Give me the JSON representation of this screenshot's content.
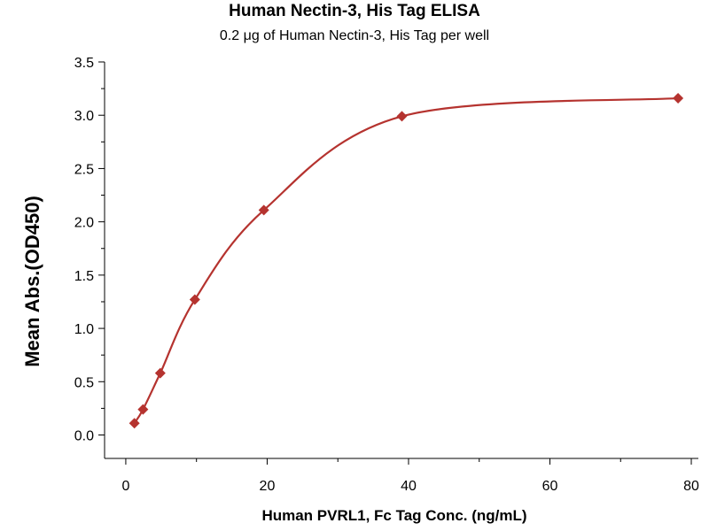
{
  "chart_data": {
    "type": "scatter",
    "title": "Human Nectin-3, His Tag ELISA",
    "subtitle": "0.2 μg of Human Nectin-3, His Tag per well",
    "xlabel": "Human PVRL1, Fc Tag Conc. (ng/mL)",
    "ylabel": "Mean Abs.(OD450)",
    "xlim": [
      -3,
      81
    ],
    "ylim": [
      -0.22,
      3.5
    ],
    "xticks": [
      "0",
      "20",
      "40",
      "60",
      "80"
    ],
    "yticks": [
      "0.0",
      "0.5",
      "1.0",
      "1.5",
      "2.0",
      "2.5",
      "3.0",
      "3.5"
    ],
    "grid": false,
    "legend": "none",
    "series": [
      {
        "x": [
          1.22,
          2.44,
          4.88,
          9.77,
          19.53,
          39.06,
          78.13
        ],
        "y": [
          0.11,
          0.24,
          0.58,
          1.27,
          2.11,
          2.99,
          3.16
        ]
      }
    ],
    "marker_color": "#b5332f",
    "curve_color": "#b5332f"
  }
}
